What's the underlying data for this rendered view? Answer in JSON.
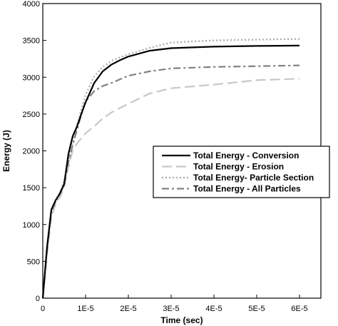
{
  "chart_data": {
    "type": "line",
    "title": "",
    "xlabel": "Time (sec)",
    "ylabel": "Energy (J)",
    "xlim": [
      0,
      6.5e-05
    ],
    "ylim": [
      0,
      4000
    ],
    "x_ticks": [
      0,
      1e-05,
      2e-05,
      3e-05,
      4e-05,
      5e-05,
      6e-05
    ],
    "x_tick_labels": [
      "0",
      "1E-5",
      "2E-5",
      "3E-5",
      "4E-5",
      "5E-5",
      "6E-5"
    ],
    "y_ticks": [
      0,
      500,
      1000,
      1500,
      2000,
      2500,
      3000,
      3500,
      4000
    ],
    "y_tick_labels": [
      "0",
      "500",
      "1000",
      "1500",
      "2000",
      "2500",
      "3000",
      "3500",
      "4000"
    ],
    "grid": false,
    "legend_position": "right-middle",
    "series": [
      {
        "name": "Total Energy - Conversion",
        "color": "#000000",
        "dash": "solid",
        "x": [
          0,
          1e-06,
          2e-06,
          3e-06,
          4e-06,
          5e-06,
          6e-06,
          7e-06,
          8e-06,
          9e-06,
          1e-05,
          1.2e-05,
          1.4e-05,
          1.6e-05,
          1.8e-05,
          2e-05,
          2.5e-05,
          3e-05,
          4e-05,
          5e-05,
          6e-05
        ],
        "y": [
          0,
          700,
          1200,
          1330,
          1420,
          1550,
          1960,
          2200,
          2330,
          2500,
          2660,
          2920,
          3080,
          3170,
          3230,
          3280,
          3360,
          3395,
          3415,
          3425,
          3430
        ]
      },
      {
        "name": "Total Energy - Erosion",
        "color": "#c8c8c8",
        "dash": "long-dash",
        "x": [
          0,
          1e-06,
          2e-06,
          3e-06,
          4e-06,
          5e-06,
          6e-06,
          7e-06,
          8e-06,
          9e-06,
          1e-05,
          1.2e-05,
          1.4e-05,
          1.6e-05,
          1.8e-05,
          2e-05,
          2.5e-05,
          3e-05,
          4e-05,
          5e-05,
          6e-05
        ],
        "y": [
          0,
          600,
          1100,
          1280,
          1370,
          1500,
          1780,
          2010,
          2100,
          2170,
          2240,
          2330,
          2440,
          2520,
          2580,
          2640,
          2780,
          2850,
          2900,
          2960,
          2980
        ]
      },
      {
        "name": "Total Energy- Particle Section",
        "color": "#a8a8a8",
        "dash": "dotted",
        "x": [
          0,
          1e-06,
          2e-06,
          3e-06,
          4e-06,
          5e-06,
          6e-06,
          7e-06,
          8e-06,
          9e-06,
          1e-05,
          1.2e-05,
          1.4e-05,
          1.6e-05,
          1.8e-05,
          2e-05,
          2.5e-05,
          3e-05,
          4e-05,
          5e-05,
          6e-05
        ],
        "y": [
          0,
          650,
          1150,
          1300,
          1420,
          1600,
          1850,
          2120,
          2350,
          2560,
          2760,
          3010,
          3140,
          3220,
          3270,
          3310,
          3400,
          3470,
          3500,
          3510,
          3520
        ]
      },
      {
        "name": "Total Energy - All Particles",
        "color": "#808080",
        "dash": "dash-dot",
        "x": [
          0,
          1e-06,
          2e-06,
          3e-06,
          4e-06,
          5e-06,
          6e-06,
          7e-06,
          8e-06,
          9e-06,
          1e-05,
          1.2e-05,
          1.4e-05,
          1.6e-05,
          1.8e-05,
          2e-05,
          2.5e-05,
          3e-05,
          4e-05,
          5e-05,
          6e-05
        ],
        "y": [
          0,
          650,
          1180,
          1320,
          1430,
          1560,
          1850,
          2080,
          2290,
          2490,
          2670,
          2810,
          2880,
          2920,
          2970,
          3020,
          3080,
          3120,
          3140,
          3150,
          3160
        ]
      }
    ]
  }
}
